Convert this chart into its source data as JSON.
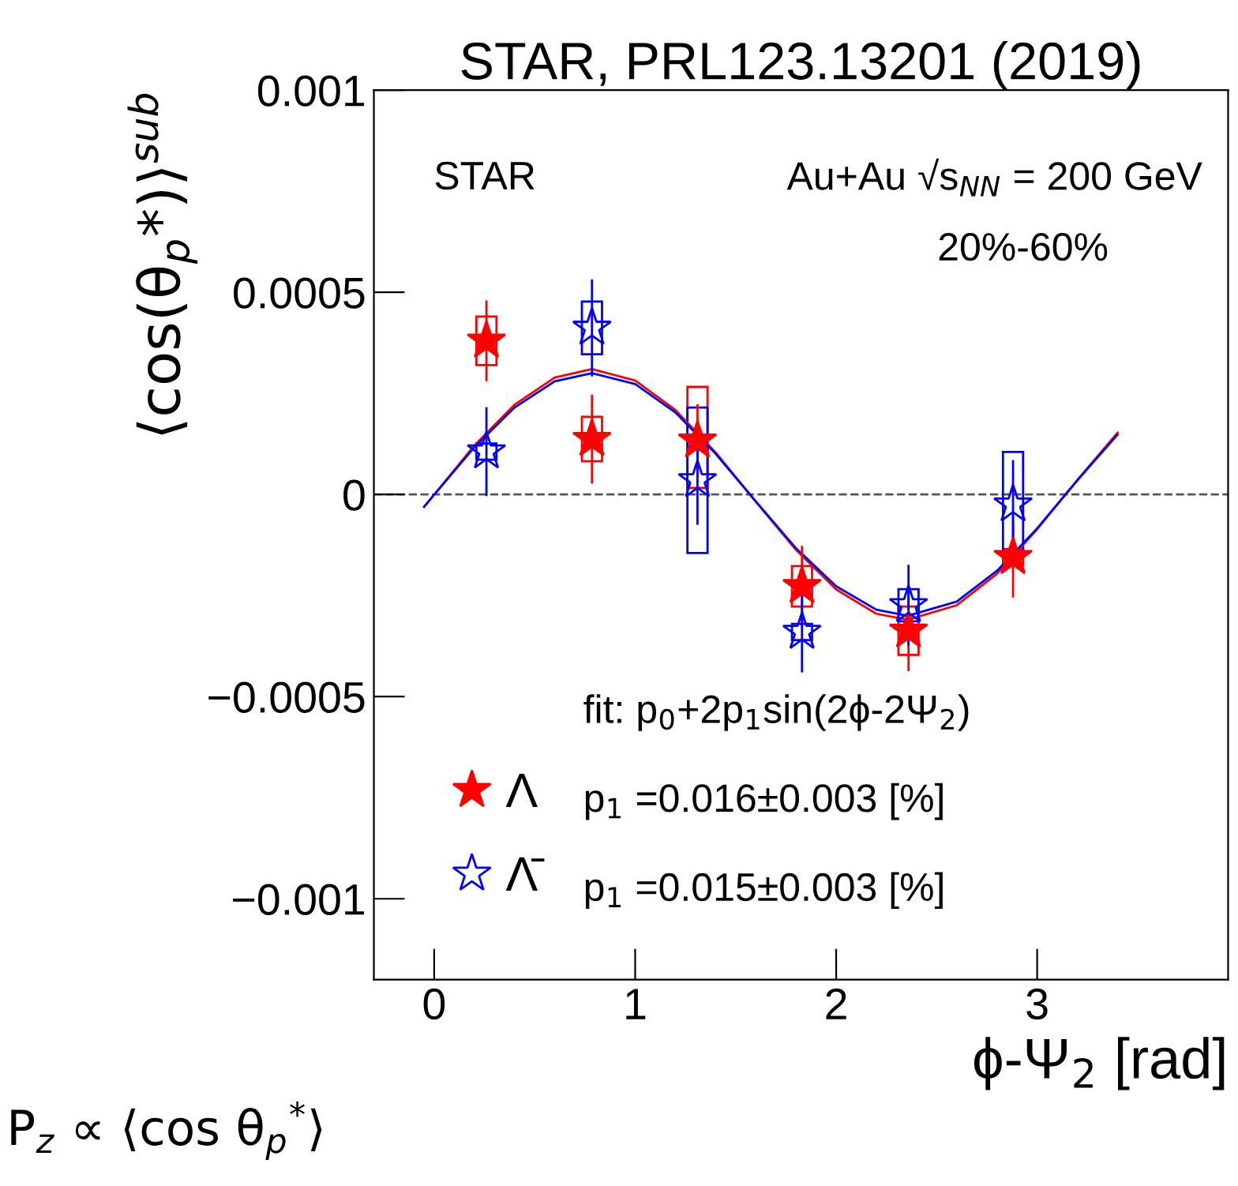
{
  "chart_data": {
    "type": "scatter",
    "title": "STAR, PRL123.13201 (2019)",
    "xlabel": "ϕ-Ψ$_{2}$ [rad]",
    "ylabel": "⟨cos(θ$_{p}$*)⟩$^{sub}$",
    "annotations": [
      "STAR",
      "Au+Au √s$_{NN}$ = 200 GeV",
      "20%-60%",
      "fit: p$_{0}$+2p$_{1}$sin(2ϕ-2Ψ$_{2}$)",
      "p$_{1}$ =0.016±0.003 [%]",
      "p$_{1}$ =0.015±0.003 [%]",
      "P$_{z}$ ∝ ⟨cos θ$_{p}$$^{*}$⟩"
    ],
    "xlim": [
      -0.3,
      3.95
    ],
    "ylim": [
      -0.0012,
      0.001
    ],
    "xticks": [
      0,
      1,
      2,
      3
    ],
    "yticks": [
      {
        "value": 0.001,
        "label": "0.001"
      },
      {
        "value": 0.0005,
        "label": "0.0005"
      },
      0,
      {
        "value": -0.0005,
        "label": "−0.0005"
      },
      {
        "value": -0.001,
        "label": "−0.001"
      }
    ],
    "ref_lines": [
      {
        "axis": "y",
        "value": 0,
        "label": null,
        "color": "#555555",
        "line_style": "dashed"
      }
    ],
    "legend": "bottom left",
    "grid": false,
    "series": [
      {
        "name": "Λ",
        "marker": "star",
        "color": "#ff0000",
        "x": [
          0.26,
          0.785,
          1.31,
          1.83,
          2.36,
          2.88
        ],
        "values": [
          0.00038,
          0.000137,
          0.000133,
          -0.000227,
          -0.000337,
          -0.000155
        ],
        "errors": [
          0.0001,
          0.00011,
          9e-05,
          0.0001,
          0.0001,
          0.0001
        ]
      },
      {
        "name": "Λ̄",
        "marker": "star",
        "color": "#0000ff",
        "x": [
          0.26,
          0.785,
          1.31,
          1.83,
          2.36,
          2.88
        ],
        "values": [
          0.000106,
          0.000412,
          3.5e-05,
          -0.00034,
          -0.000274,
          -2.5e-05
        ],
        "errors": [
          0.00011,
          0.00012,
          0.00011,
          0.0001,
          0.0001,
          0.00011
        ]
      },
      {
        "type": "bar",
        "color": "#ff0000",
        "x": [
          0.26,
          0.785,
          1.31,
          1.83,
          2.36,
          2.88
        ],
        "base": [
          0.00032,
          8.2e-05,
          1.6e-05,
          -0.000277,
          -0.000397,
          -0.000175
        ],
        "values": [
          0.00012,
          0.00011,
          0.00025,
          0.0001,
          0.00012,
          4e-05
        ]
      },
      {
        "type": "bar",
        "color": "#0000ff",
        "x": [
          0.26,
          0.785,
          1.31,
          1.83,
          2.36,
          2.88
        ],
        "base": [
          8.6e-05,
          0.000347,
          -0.000145,
          -0.00036,
          -0.000314,
          -0.000155
        ],
        "values": [
          4e-05,
          0.00013,
          0.00036,
          4e-05,
          8e-05,
          0.00026
        ]
      },
      {
        "type": "line",
        "color": "#ff0000",
        "x": [
          -0.05,
          0.2,
          0.4,
          0.6,
          0.785,
          1.0,
          1.2,
          1.4,
          1.6,
          1.8,
          2.0,
          2.2,
          2.356,
          2.6,
          2.8,
          3.0,
          3.2,
          3.4
        ],
        "values": [
          -3.1e-05,
          0.000121,
          0.000222,
          0.000289,
          0.00031,
          0.000282,
          0.000209,
          0.000104,
          -1.8e-05,
          -0.000137,
          -0.000235,
          -0.000295,
          -0.00031,
          -0.000274,
          -0.000196,
          -8.6e-05,
          3.6e-05,
          0.000153
        ]
      },
      {
        "type": "line",
        "color": "#0000ff",
        "x": [
          -0.05,
          0.2,
          0.4,
          0.6,
          0.785,
          1.0,
          1.2,
          1.4,
          1.6,
          1.8,
          2.0,
          2.2,
          2.356,
          2.6,
          2.8,
          3.0,
          3.2,
          3.4
        ],
        "values": [
          -3e-05,
          0.000117,
          0.000215,
          0.00028,
          0.0003,
          0.000273,
          0.000203,
          0.000101,
          -1.7e-05,
          -0.000133,
          -0.000227,
          -0.000285,
          -0.0003,
          -0.000265,
          -0.000189,
          -8.4e-05,
          3.5e-05,
          0.000148
        ]
      }
    ]
  }
}
